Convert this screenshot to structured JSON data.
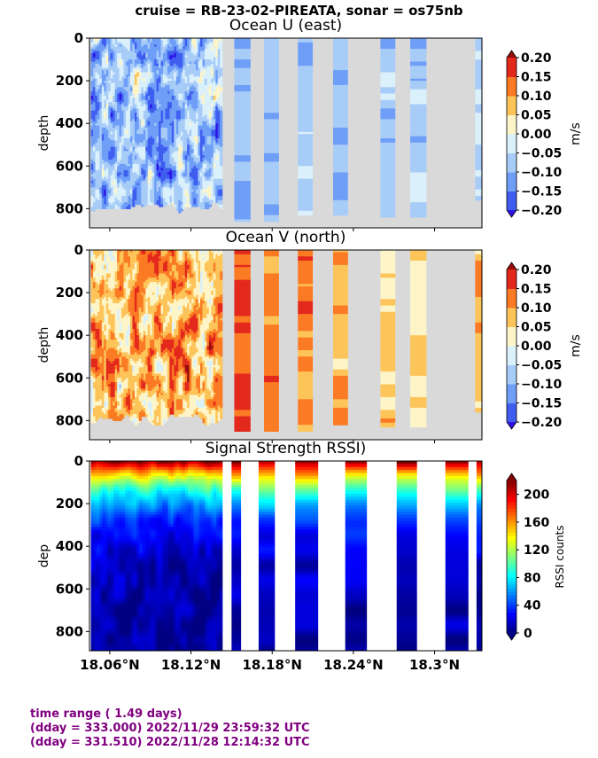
{
  "figure": {
    "suptitle": "cruise = RB-23-02-PIREATA,  sonar = os75nb",
    "footer_lines": [
      "time range ( 1.49 days)",
      "(dday = 333.000) 2022/11/29 23:59:32 UTC",
      "(dday = 331.510) 2022/11/28 12:14:32 UTC"
    ]
  },
  "colors": {
    "nodata": "#d9d9d9",
    "footer_text": "#800080"
  },
  "chart_data": [
    {
      "type": "heatmap",
      "title": "Ocean U (east)",
      "ylabel": "depth",
      "xlabel": "",
      "xlim": [
        18.045,
        18.335
      ],
      "ylim": [
        890,
        0
      ],
      "yticks": [
        0,
        200,
        400,
        600,
        800
      ],
      "xticks": [
        18.06,
        18.12,
        18.18,
        18.24,
        18.3
      ],
      "xtick_labels": [],
      "colorbar": {
        "label": "m/s",
        "levels": [
          -0.2,
          -0.15,
          -0.1,
          -0.05,
          0.0,
          0.05,
          0.1,
          0.15,
          0.2
        ],
        "tick_labels": [
          "0.20",
          "0.15",
          "0.10",
          "0.05",
          "0.00",
          "−0.05",
          "−0.10",
          "−0.15",
          "−0.20"
        ],
        "colors": [
          "#2e14e6",
          "#3f5ef0",
          "#6f9ef7",
          "#a8ccf8",
          "#daf0fb",
          "#fdf5c8",
          "#fdc45a",
          "#fb7a24",
          "#e3291c",
          "#980c0c"
        ]
      },
      "dense_segment": {
        "x": [
          18.046,
          18.143
        ],
        "deep_limit": 870,
        "mean_level": -0.08,
        "spread": 0.13
      },
      "columns": [
        {
          "x": [
            18.152,
            18.164
          ],
          "depth": 852,
          "mean_level": -0.09
        },
        {
          "x": [
            18.174,
            18.185
          ],
          "depth": 852,
          "mean_level": -0.09
        },
        {
          "x": [
            18.199,
            18.21
          ],
          "depth": 825,
          "mean_level": -0.08
        },
        {
          "x": [
            18.225,
            18.236
          ],
          "depth": 825,
          "mean_level": -0.08
        },
        {
          "x": [
            18.26,
            18.271
          ],
          "depth": 835,
          "mean_level": -0.07
        },
        {
          "x": [
            18.282,
            18.294
          ],
          "depth": 835,
          "mean_level": -0.07
        },
        {
          "x": [
            18.33,
            18.335
          ],
          "depth": 760,
          "mean_level": -0.04
        }
      ]
    },
    {
      "type": "heatmap",
      "title": "Ocean V (north)",
      "ylabel": "depth",
      "xlabel": "",
      "xlim": [
        18.045,
        18.335
      ],
      "ylim": [
        890,
        0
      ],
      "yticks": [
        0,
        200,
        400,
        600,
        800
      ],
      "xticks": [
        18.06,
        18.12,
        18.18,
        18.24,
        18.3
      ],
      "xtick_labels": [],
      "colorbar": {
        "label": "m/s",
        "levels": [
          -0.2,
          -0.15,
          -0.1,
          -0.05,
          0.0,
          0.05,
          0.1,
          0.15,
          0.2
        ],
        "tick_labels": [
          "0.20",
          "0.15",
          "0.10",
          "0.05",
          "0.00",
          "−0.05",
          "−0.10",
          "−0.15",
          "−0.20"
        ],
        "colors": [
          "#2e14e6",
          "#3f5ef0",
          "#6f9ef7",
          "#a8ccf8",
          "#daf0fb",
          "#fdf5c8",
          "#fdc45a",
          "#fb7a24",
          "#e3291c",
          "#980c0c"
        ]
      },
      "dense_segment": {
        "x": [
          18.046,
          18.143
        ],
        "deep_limit": 870,
        "mean_level": 0.08,
        "spread": 0.12
      },
      "columns": [
        {
          "x": [
            18.152,
            18.164
          ],
          "depth": 845,
          "mean_level": 0.16
        },
        {
          "x": [
            18.174,
            18.185
          ],
          "depth": 850,
          "mean_level": 0.11
        },
        {
          "x": [
            18.199,
            18.21
          ],
          "depth": 850,
          "mean_level": 0.13
        },
        {
          "x": [
            18.225,
            18.236
          ],
          "depth": 820,
          "mean_level": 0.09
        },
        {
          "x": [
            18.26,
            18.271
          ],
          "depth": 830,
          "mean_level": 0.05
        },
        {
          "x": [
            18.282,
            18.294
          ],
          "depth": 830,
          "mean_level": 0.06
        },
        {
          "x": [
            18.33,
            18.335
          ],
          "depth": 760,
          "mean_level": 0.08
        }
      ]
    },
    {
      "type": "heatmap",
      "title": "Signal Strength RSSI)",
      "ylabel": "dep",
      "xlabel": "",
      "xlim": [
        18.045,
        18.335
      ],
      "ylim": [
        890,
        0
      ],
      "yticks": [
        0,
        200,
        400,
        600,
        800
      ],
      "xticks": [
        18.06,
        18.12,
        18.18,
        18.24,
        18.3
      ],
      "xtick_labels": [
        "18.06°N",
        "18.12°N",
        "18.18°N",
        "18.24°N",
        "18.3°N"
      ],
      "colorbar": {
        "label": "RSSI counts",
        "range": [
          0,
          220
        ],
        "ticks": [
          0,
          40,
          80,
          120,
          160,
          200
        ],
        "tick_labels": [
          "0",
          "40",
          "80",
          "120",
          "160",
          "200"
        ]
      },
      "dense_segment": {
        "x": [
          18.046,
          18.143
        ]
      },
      "columns": [
        {
          "x": [
            18.15,
            18.157
          ]
        },
        {
          "x": [
            18.17,
            18.182
          ]
        },
        {
          "x": [
            18.197,
            18.214
          ]
        },
        {
          "x": [
            18.234,
            18.25
          ]
        },
        {
          "x": [
            18.272,
            18.287
          ]
        },
        {
          "x": [
            18.308,
            18.325
          ]
        },
        {
          "x": [
            18.335,
            18.335
          ]
        }
      ]
    }
  ]
}
